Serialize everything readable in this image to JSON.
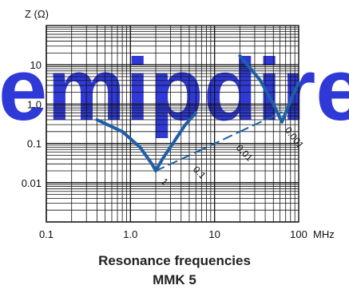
{
  "caption": {
    "line1": "Resonance frequencies",
    "line2": "MMK 5"
  },
  "watermark": "emipdirect",
  "colors": {
    "curve": "#1f5fa8",
    "grid": "#111111",
    "watermark": "#2f39d6"
  },
  "chart_data": {
    "type": "line",
    "title": "",
    "xlabel": "MHz",
    "ylabel": "Z (Ω)",
    "x_scale": "log",
    "y_scale": "log",
    "xlim": [
      0.1,
      100
    ],
    "ylim": [
      0.001,
      100
    ],
    "x_ticks": [
      {
        "value": 0.1,
        "label": "0.1"
      },
      {
        "value": 1,
        "label": "1.0"
      },
      {
        "value": 10,
        "label": "10"
      },
      {
        "value": 100,
        "label": "100"
      }
    ],
    "y_ticks": [
      {
        "value": 0.01,
        "label": "0.01"
      },
      {
        "value": 0.1,
        "label": "0.1"
      },
      {
        "value": 1,
        "label": "1.0"
      },
      {
        "value": 10,
        "label": "10"
      }
    ],
    "grid": true,
    "series": [
      {
        "label": "1",
        "style": "solid",
        "x": [
          0.4,
          0.8,
          1.3,
          1.8,
          2.0,
          2.4,
          3.2,
          4.5,
          6.0
        ],
        "y": [
          0.4,
          0.2,
          0.08,
          0.03,
          0.02,
          0.04,
          0.1,
          0.3,
          0.6
        ]
      },
      {
        "label": "0.1",
        "style": "dashed",
        "x": [
          2.0,
          6.3
        ],
        "y": [
          0.02,
          0.062
        ]
      },
      {
        "label": "0.01",
        "style": "dashed",
        "x": [
          6.3,
          20
        ],
        "y": [
          0.062,
          0.2
        ]
      },
      {
        "label": "0.001",
        "style": "solid",
        "x": [
          20,
          35,
          50,
          63,
          70,
          85,
          100
        ],
        "y": [
          17,
          4,
          1,
          0.35,
          0.6,
          1.7,
          3.5
        ]
      },
      {
        "label": "",
        "style": "dashed",
        "x": [
          20,
          63
        ],
        "y": [
          0.2,
          0.62
        ]
      }
    ]
  }
}
